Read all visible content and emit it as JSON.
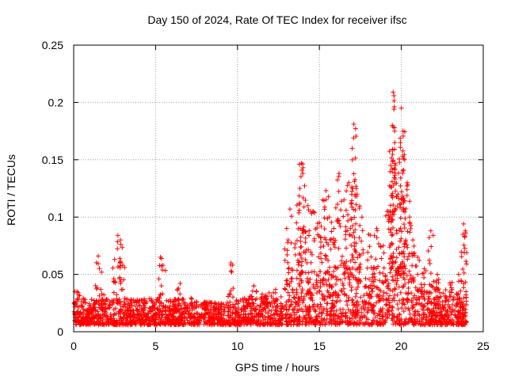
{
  "chart_data": {
    "type": "scatter",
    "title": "Day 150 of 2024, Rate Of TEC Index for receiver ifsc",
    "xlabel": "GPS time / hours",
    "ylabel": "ROTI / TECUs",
    "xlim": [
      0,
      25
    ],
    "ylim": [
      0,
      0.25
    ],
    "x_ticks": [
      0,
      5,
      10,
      15,
      20,
      25
    ],
    "x_tick_labels": [
      "0",
      "5",
      "10",
      "15",
      "20",
      "25"
    ],
    "y_ticks": [
      0,
      0.05,
      0.1,
      0.15,
      0.2,
      0.25
    ],
    "y_tick_labels": [
      "0",
      "0.05",
      "0.1",
      "0.15",
      "0.2",
      "0.25"
    ],
    "grid": true,
    "marker": "+",
    "series": [
      {
        "name": "ROTI",
        "color": "#ff0000",
        "note": "dense baseline ~0.005-0.03 TECU/s across 0-24 h, enhanced 13-23 h",
        "baseline_envelope": [
          [
            0,
            0.032
          ],
          [
            1,
            0.028
          ],
          [
            2,
            0.03
          ],
          [
            3,
            0.03
          ],
          [
            4,
            0.028
          ],
          [
            5,
            0.03
          ],
          [
            6,
            0.028
          ],
          [
            7,
            0.03
          ],
          [
            8,
            0.026
          ],
          [
            9,
            0.026
          ],
          [
            10,
            0.028
          ],
          [
            11,
            0.032
          ],
          [
            12,
            0.036
          ],
          [
            13,
            0.042
          ],
          [
            14,
            0.05
          ],
          [
            15,
            0.055
          ],
          [
            16,
            0.058
          ],
          [
            17,
            0.06
          ],
          [
            18,
            0.058
          ],
          [
            19,
            0.06
          ],
          [
            20,
            0.055
          ],
          [
            21,
            0.045
          ],
          [
            22,
            0.04
          ],
          [
            23,
            0.036
          ],
          [
            24,
            0.03
          ]
        ],
        "peaks": [
          {
            "x": 0.2,
            "y": 0.035
          },
          {
            "x": 1.5,
            "y": 0.066
          },
          {
            "x": 1.7,
            "y": 0.052
          },
          {
            "x": 2.5,
            "y": 0.063
          },
          {
            "x": 2.7,
            "y": 0.084
          },
          {
            "x": 2.85,
            "y": 0.08
          },
          {
            "x": 3.0,
            "y": 0.058
          },
          {
            "x": 5.3,
            "y": 0.065
          },
          {
            "x": 5.45,
            "y": 0.058
          },
          {
            "x": 6.5,
            "y": 0.042
          },
          {
            "x": 9.6,
            "y": 0.06
          },
          {
            "x": 9.65,
            "y": 0.052
          },
          {
            "x": 11.0,
            "y": 0.04
          },
          {
            "x": 13.0,
            "y": 0.09
          },
          {
            "x": 13.2,
            "y": 0.107
          },
          {
            "x": 13.6,
            "y": 0.095
          },
          {
            "x": 13.8,
            "y": 0.125
          },
          {
            "x": 13.9,
            "y": 0.147
          },
          {
            "x": 14.0,
            "y": 0.143
          },
          {
            "x": 14.3,
            "y": 0.11
          },
          {
            "x": 14.6,
            "y": 0.105
          },
          {
            "x": 15.0,
            "y": 0.095
          },
          {
            "x": 15.2,
            "y": 0.115
          },
          {
            "x": 15.4,
            "y": 0.123
          },
          {
            "x": 15.6,
            "y": 0.1
          },
          {
            "x": 16.0,
            "y": 0.108
          },
          {
            "x": 16.2,
            "y": 0.138
          },
          {
            "x": 16.5,
            "y": 0.115
          },
          {
            "x": 16.8,
            "y": 0.13
          },
          {
            "x": 17.0,
            "y": 0.16
          },
          {
            "x": 17.1,
            "y": 0.181
          },
          {
            "x": 17.3,
            "y": 0.12
          },
          {
            "x": 17.6,
            "y": 0.1
          },
          {
            "x": 18.0,
            "y": 0.085
          },
          {
            "x": 18.5,
            "y": 0.09
          },
          {
            "x": 18.9,
            "y": 0.075
          },
          {
            "x": 19.2,
            "y": 0.105
          },
          {
            "x": 19.35,
            "y": 0.145
          },
          {
            "x": 19.45,
            "y": 0.18
          },
          {
            "x": 19.5,
            "y": 0.209
          },
          {
            "x": 19.6,
            "y": 0.165
          },
          {
            "x": 19.8,
            "y": 0.12
          },
          {
            "x": 20.0,
            "y": 0.195
          },
          {
            "x": 20.1,
            "y": 0.175
          },
          {
            "x": 20.2,
            "y": 0.15
          },
          {
            "x": 20.35,
            "y": 0.13
          },
          {
            "x": 20.5,
            "y": 0.1
          },
          {
            "x": 20.7,
            "y": 0.08
          },
          {
            "x": 21.0,
            "y": 0.065
          },
          {
            "x": 21.4,
            "y": 0.055
          },
          {
            "x": 21.8,
            "y": 0.088
          },
          {
            "x": 22.2,
            "y": 0.05
          },
          {
            "x": 23.1,
            "y": 0.043
          },
          {
            "x": 23.5,
            "y": 0.05
          },
          {
            "x": 23.8,
            "y": 0.094
          },
          {
            "x": 23.9,
            "y": 0.088
          }
        ]
      }
    ]
  }
}
